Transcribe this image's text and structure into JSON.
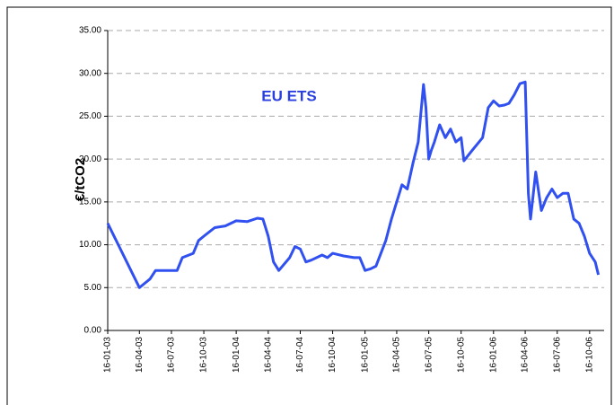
{
  "chart_data": {
    "type": "line",
    "annotation": "EU ETS",
    "y_label": "€/tCO2",
    "x": [
      "16-01-03",
      "16-04-03",
      "01-05-03",
      "16-05-03",
      "01-06-03",
      "16-07-03",
      "01-08-03",
      "16-08-03",
      "16-09-03",
      "01-10-03",
      "16-10-03",
      "16-11-03",
      "16-12-03",
      "16-01-04",
      "16-02-04",
      "16-03-04",
      "01-04-04",
      "16-04-04",
      "01-05-04",
      "16-05-04",
      "16-06-04",
      "01-07-04",
      "16-07-04",
      "01-08-04",
      "16-08-04",
      "16-09-04",
      "01-10-04",
      "16-10-04",
      "16-11-04",
      "16-12-04",
      "01-01-05",
      "16-01-05",
      "01-02-05",
      "16-02-05",
      "16-03-05",
      "01-04-05",
      "16-04-05",
      "01-05-05",
      "16-05-05",
      "01-06-05",
      "16-06-05",
      "01-07-05",
      "08-07-05",
      "16-07-05",
      "23-07-05",
      "01-08-05",
      "16-08-05",
      "01-09-05",
      "16-09-05",
      "01-10-05",
      "16-10-05",
      "24-10-05",
      "16-11-05",
      "16-12-05",
      "01-01-06",
      "16-01-06",
      "01-02-06",
      "16-02-06",
      "01-03-06",
      "16-03-06",
      "01-04-06",
      "16-04-06",
      "25-04-06",
      "01-05-06",
      "16-05-06",
      "01-06-06",
      "16-06-06",
      "01-07-06",
      "16-07-06",
      "01-08-06",
      "16-08-06",
      "01-09-06",
      "16-09-06",
      "01-10-06",
      "16-10-06",
      "01-11-06",
      "10-11-06"
    ],
    "series": [
      {
        "name": "EU ETS",
        "color": "#3050f0",
        "values": [
          12.5,
          5.0,
          5.5,
          6.0,
          7.0,
          7.0,
          7.0,
          8.5,
          9.0,
          10.5,
          11.0,
          12.0,
          12.2,
          12.8,
          12.7,
          13.1,
          13.0,
          11.0,
          8.0,
          7.0,
          8.5,
          9.8,
          9.5,
          8.0,
          8.2,
          8.8,
          8.5,
          9.0,
          8.7,
          8.5,
          8.5,
          7.0,
          7.2,
          7.5,
          10.5,
          13.0,
          15.0,
          17.0,
          16.5,
          19.5,
          22.0,
          28.7,
          26.0,
          20.0,
          21.0,
          22.0,
          24.0,
          22.5,
          23.5,
          22.0,
          22.5,
          19.8,
          21.0,
          22.5,
          26.0,
          26.8,
          26.2,
          26.3,
          26.5,
          27.5,
          28.8,
          29.0,
          16.0,
          13.0,
          18.5,
          14.0,
          15.5,
          16.5,
          15.5,
          16.0,
          16.0,
          13.0,
          12.5,
          11.0,
          9.0,
          8.0,
          6.5
        ]
      }
    ],
    "xlim": [
      "16-01-03",
      "16-11-06"
    ],
    "xticks": [
      "16-01-03",
      "16-04-03",
      "16-07-03",
      "16-10-03",
      "16-01-04",
      "16-04-04",
      "16-07-04",
      "16-10-04",
      "16-01-05",
      "16-04-05",
      "16-07-05",
      "16-10-05",
      "16-01-06",
      "16-04-06",
      "16-07-06",
      "16-10-06"
    ],
    "ylim": [
      0,
      35
    ],
    "yticks": [
      {
        "value": 0,
        "label": "0.00"
      },
      {
        "value": 5,
        "label": "5.00"
      },
      {
        "value": 10,
        "label": "10.00"
      },
      {
        "value": 15,
        "label": "15.00"
      },
      {
        "value": 20,
        "label": "20.00"
      },
      {
        "value": 25,
        "label": "25.00"
      },
      {
        "value": 30,
        "label": "30.00"
      },
      {
        "value": 35,
        "label": "35.00"
      }
    ],
    "grid": true
  }
}
